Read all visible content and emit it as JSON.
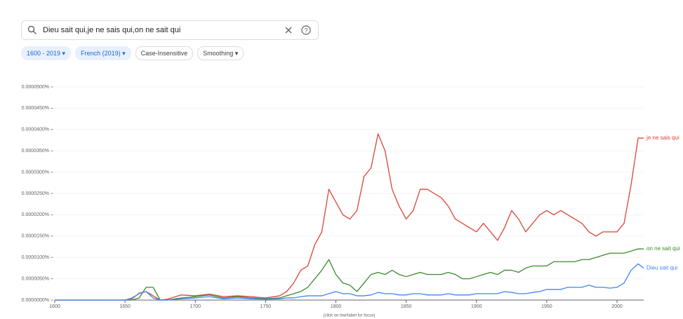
{
  "search": {
    "query": "Dieu sait qui,je ne sais qui,on ne sait qui"
  },
  "filters": [
    {
      "label": "1600 - 2019",
      "selected": true,
      "dropdown": true
    },
    {
      "label": "French (2019)",
      "selected": true,
      "dropdown": true
    },
    {
      "label": "Case-Insensitive",
      "selected": false,
      "dropdown": false
    },
    {
      "label": "Smoothing",
      "selected": false,
      "dropdown": true
    }
  ],
  "chart_data": {
    "type": "line",
    "note": "(click on line/label for focus)",
    "x": [
      1600,
      1650,
      1655,
      1660,
      1665,
      1670,
      1675,
      1680,
      1690,
      1700,
      1710,
      1720,
      1730,
      1740,
      1750,
      1760,
      1765,
      1770,
      1775,
      1780,
      1785,
      1790,
      1795,
      1800,
      1805,
      1810,
      1815,
      1820,
      1825,
      1830,
      1835,
      1840,
      1845,
      1850,
      1855,
      1860,
      1865,
      1870,
      1875,
      1880,
      1885,
      1890,
      1895,
      1900,
      1905,
      1910,
      1915,
      1920,
      1925,
      1930,
      1935,
      1940,
      1945,
      1950,
      1955,
      1960,
      1965,
      1970,
      1975,
      1980,
      1985,
      1990,
      1995,
      2000,
      2005,
      2010,
      2015,
      2019
    ],
    "series": [
      {
        "name": "je ne sais qui",
        "color": "#db4437",
        "values": [
          0,
          0,
          3e-07,
          1.6e-06,
          2e-06,
          1e-06,
          0,
          2e-07,
          1.2e-06,
          1e-06,
          1.4e-06,
          8e-07,
          1e-06,
          8e-07,
          5e-07,
          1e-06,
          2e-06,
          4e-06,
          7e-06,
          8e-06,
          1.3e-05,
          1.6e-05,
          2.6e-05,
          2.3e-05,
          2e-05,
          1.9e-05,
          2.1e-05,
          2.9e-05,
          3.1e-05,
          3.9e-05,
          3.5e-05,
          2.6e-05,
          2.2e-05,
          1.9e-05,
          2.1e-05,
          2.6e-05,
          2.6e-05,
          2.5e-05,
          2.4e-05,
          2.2e-05,
          1.9e-05,
          1.8e-05,
          1.7e-05,
          1.6e-05,
          1.8e-05,
          1.6e-05,
          1.4e-05,
          1.7e-05,
          2.1e-05,
          1.9e-05,
          1.6e-05,
          1.8e-05,
          2e-05,
          2.1e-05,
          2e-05,
          2.1e-05,
          2e-05,
          1.9e-05,
          1.8e-05,
          1.6e-05,
          1.5e-05,
          1.6e-05,
          1.6e-05,
          1.6e-05,
          1.8e-05,
          2.7e-05,
          3.8e-05,
          3.8e-05
        ]
      },
      {
        "name": "on ne sait qui",
        "color": "#3c8a2e",
        "values": [
          0,
          0,
          0,
          5e-07,
          3e-06,
          3e-06,
          0,
          0,
          5e-07,
          8e-07,
          1.2e-06,
          5e-07,
          8e-07,
          5e-07,
          3e-07,
          5e-07,
          1e-06,
          1.5e-06,
          2e-06,
          3e-06,
          5e-06,
          7e-06,
          9.5e-06,
          6e-06,
          4e-06,
          3.5e-06,
          2e-06,
          4e-06,
          6e-06,
          6.5e-06,
          6e-06,
          7e-06,
          6e-06,
          5.5e-06,
          6e-06,
          6.5e-06,
          6e-06,
          6e-06,
          6e-06,
          6.5e-06,
          6e-06,
          5e-06,
          5e-06,
          5.5e-06,
          6e-06,
          6.5e-06,
          6e-06,
          7e-06,
          7e-06,
          6.5e-06,
          7.5e-06,
          8e-06,
          8e-06,
          8e-06,
          9e-06,
          9e-06,
          9e-06,
          9e-06,
          9.5e-06,
          9.5e-06,
          1e-05,
          1.05e-05,
          1.1e-05,
          1.1e-05,
          1.1e-05,
          1.15e-05,
          1.2e-05,
          1.2e-05
        ]
      },
      {
        "name": "Dieu sait qui",
        "color": "#4285f4",
        "values": [
          0,
          0,
          5e-07,
          1.5e-06,
          2e-06,
          5e-07,
          0,
          0,
          3e-07,
          5e-07,
          8e-07,
          3e-07,
          5e-07,
          3e-07,
          2e-07,
          3e-07,
          5e-07,
          5e-07,
          8e-07,
          1e-06,
          1e-06,
          1e-06,
          1.5e-06,
          2e-06,
          1.5e-06,
          1.5e-06,
          1e-06,
          1e-06,
          1.2e-06,
          1.8e-06,
          1.5e-06,
          1.5e-06,
          1.2e-06,
          1.2e-06,
          1.5e-06,
          1.5e-06,
          1.2e-06,
          1.2e-06,
          1.2e-06,
          1.5e-06,
          1.2e-06,
          1.2e-06,
          1.2e-06,
          1.5e-06,
          1.5e-06,
          1.5e-06,
          1.5e-06,
          2e-06,
          1.8e-06,
          1.5e-06,
          1.5e-06,
          1.8e-06,
          2e-06,
          2.5e-06,
          2.5e-06,
          2.5e-06,
          3e-06,
          3e-06,
          3e-06,
          3.5e-06,
          3e-06,
          3e-06,
          2.8e-06,
          3e-06,
          4e-06,
          7e-06,
          8.5e-06,
          7.5e-06
        ]
      }
    ],
    "xlim": [
      1600,
      2019
    ],
    "xticks": [
      1600,
      1650,
      1700,
      1750,
      1800,
      1850,
      1900,
      1950,
      2000
    ],
    "ylim": [
      0,
      5e-05
    ],
    "yticks": [
      {
        "value": 0,
        "label": "0.0000000%"
      },
      {
        "value": 5e-06,
        "label": "0.0000050%"
      },
      {
        "value": 1e-05,
        "label": "0.0000100%"
      },
      {
        "value": 1.5e-05,
        "label": "0.0000150%"
      },
      {
        "value": 2e-05,
        "label": "0.0000200%"
      },
      {
        "value": 2.5e-05,
        "label": "0.0000250%"
      },
      {
        "value": 3e-05,
        "label": "0.0000300%"
      },
      {
        "value": 3.5e-05,
        "label": "0.0000350%"
      },
      {
        "value": 4e-05,
        "label": "0.0000400%"
      },
      {
        "value": 4.5e-05,
        "label": "0.0000450%"
      },
      {
        "value": 5e-05,
        "label": "0.0000500%"
      }
    ],
    "grid": true
  }
}
